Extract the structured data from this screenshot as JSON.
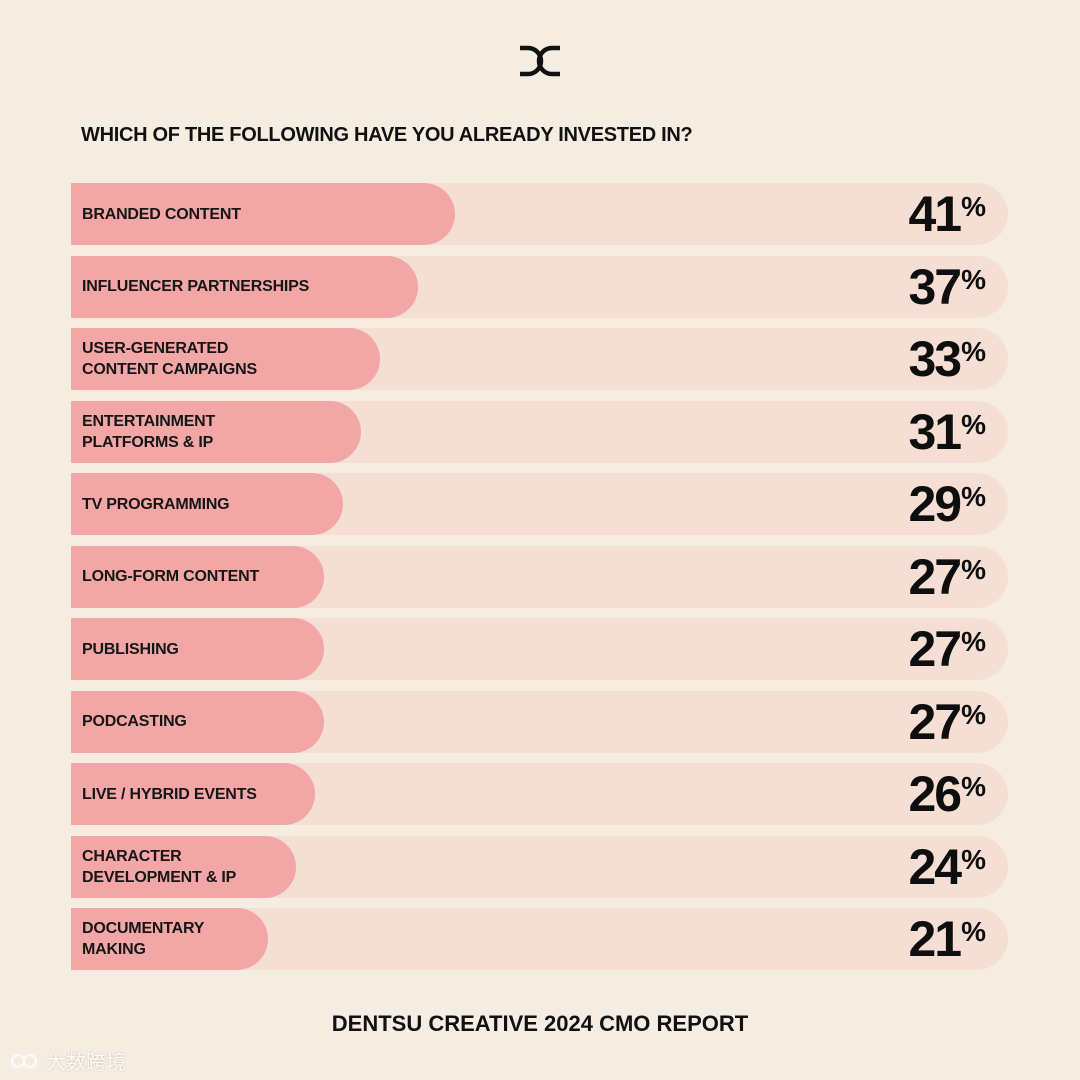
{
  "brand": {
    "logo_icon": "dentsu-dc-logo-icon"
  },
  "question": "WHICH OF THE FOLLOWING HAVE YOU ALREADY INVESTED IN?",
  "colors": {
    "background": "#f6ede2",
    "track": "#f5dfd5",
    "fill": "#f2a6a6",
    "text": "#111111"
  },
  "chart_data": {
    "type": "bar",
    "orientation": "horizontal",
    "title": "WHICH OF THE FOLLOWING HAVE YOU ALREADY INVESTED IN?",
    "categories": [
      "BRANDED CONTENT",
      "INFLUENCER PARTNERSHIPS",
      "USER-GENERATED\nCONTENT CAMPAIGNS",
      "ENTERTAINMENT\nPLATFORMS & IP",
      "TV PROGRAMMING",
      "LONG-FORM CONTENT",
      "PUBLISHING",
      "PODCASTING",
      "LIVE / HYBRID EVENTS",
      "CHARACTER\nDEVELOPMENT & IP",
      "DOCUMENTARY\nMAKING"
    ],
    "values": [
      41,
      37,
      33,
      31,
      29,
      27,
      27,
      27,
      26,
      24,
      21
    ],
    "unit": "%",
    "xlim": [
      0,
      100
    ]
  },
  "footer": "DENTSU CREATIVE 2024 CMO REPORT",
  "watermark": "大数跨境"
}
